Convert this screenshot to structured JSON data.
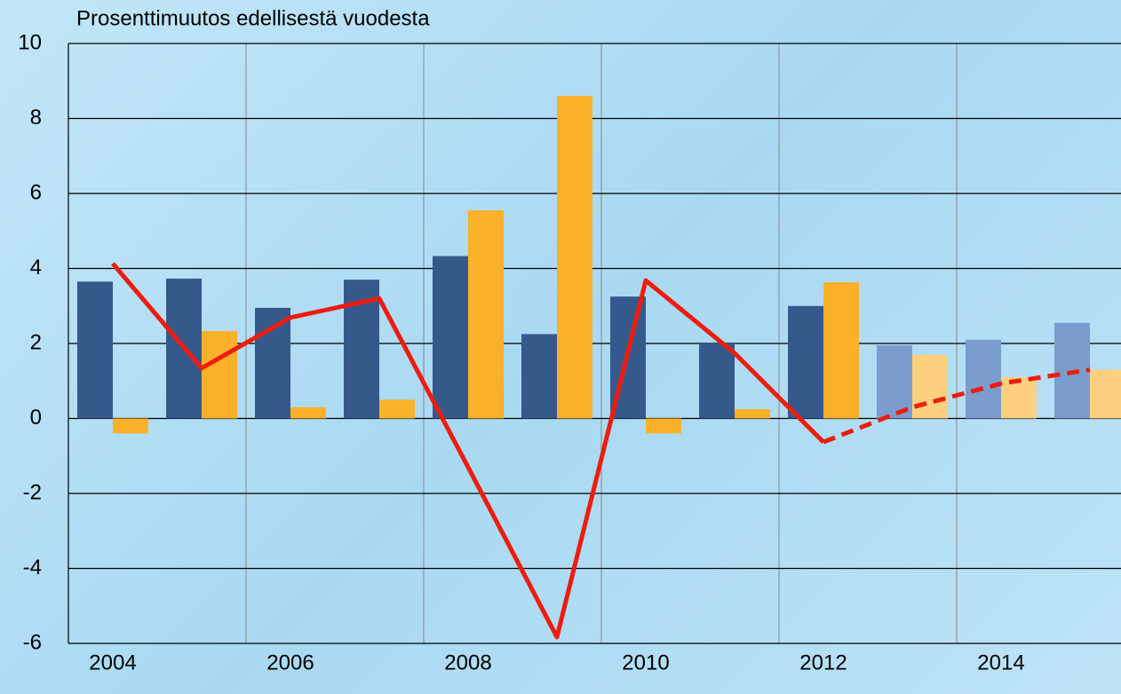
{
  "chart_data": {
    "type": "bar",
    "title": "Prosenttimuutos edellisestä vuodesta",
    "categories": [
      "2004",
      null,
      "2006",
      null,
      "2008",
      null,
      "2010",
      null,
      "2012",
      null,
      "2014",
      null
    ],
    "series": [
      {
        "type": "bar",
        "values": [
          3.65,
          3.73,
          2.95,
          3.7,
          4.33,
          2.25,
          3.25,
          2.0,
          3.0,
          1.95,
          2.1,
          2.55
        ],
        "colors": [
          "#36598c",
          "#36598c",
          "#36598c",
          "#36598c",
          "#36598c",
          "#36598c",
          "#36598c",
          "#36598c",
          "#36598c",
          "#7b9ccf",
          "#7b9ccf",
          "#7b9ccf"
        ]
      },
      {
        "type": "bar",
        "values": [
          -0.4,
          2.33,
          0.3,
          0.5,
          5.55,
          8.6,
          -0.4,
          0.25,
          3.63,
          1.7,
          1.1,
          1.3
        ],
        "colors": [
          "#fbb02a",
          "#fbb02a",
          "#fbb02a",
          "#fbb02a",
          "#fbb02a",
          "#fbb02a",
          "#fbb02a",
          "#fbb02a",
          "#fbb02a",
          "#fdd07f",
          "#fdd07f",
          "#fdd07f"
        ]
      },
      {
        "type": "line",
        "color": "#ee1c0e",
        "dashed_from": 8,
        "values": [
          4.13,
          1.34,
          2.69,
          3.2,
          -1.3,
          -5.83,
          3.68,
          1.74,
          -0.63,
          0.3,
          0.93,
          1.3
        ]
      }
    ],
    "ylim": [
      -6,
      10
    ],
    "yticks": [
      -6,
      -4,
      -2,
      0,
      2,
      4,
      6,
      8,
      10
    ],
    "grid": true
  }
}
